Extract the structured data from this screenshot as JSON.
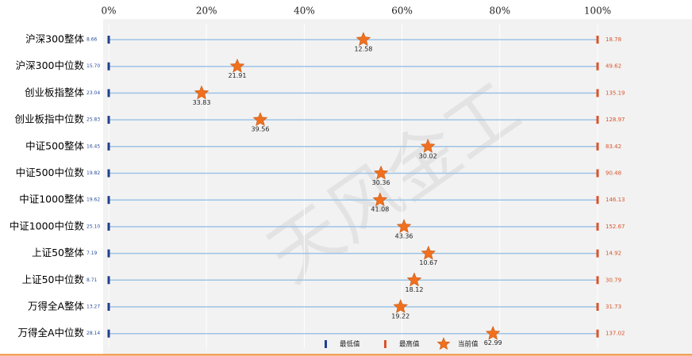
{
  "chart_data": {
    "type": "range",
    "categories": [
      "沪深300整体",
      "沪深300中位数",
      "创业板指整体",
      "创业板指中位数",
      "中证500整体",
      "中证500中位数",
      "中证1000整体",
      "中证1000中位数",
      "上证50整体",
      "上证50中位数",
      "万得全A整体",
      "万得全A中位数"
    ],
    "xlim": [
      0,
      100
    ],
    "xticks": [
      {
        "value": 0,
        "label": "0%"
      },
      {
        "value": 20,
        "label": "20%"
      },
      {
        "value": 40,
        "label": "40%"
      },
      {
        "value": 60,
        "label": "60%"
      },
      {
        "value": 80,
        "label": "80%"
      },
      {
        "value": 100,
        "label": "100%"
      }
    ],
    "series": [
      {
        "name": "最低值",
        "color": "#1f3f8f",
        "values": [
          8.66,
          15.7,
          23.04,
          25.83,
          16.45,
          19.82,
          19.62,
          25.1,
          7.19,
          8.71,
          13.27,
          28.14
        ],
        "value_labels": [
          "8.66",
          "15.70",
          "23.04",
          "25.83",
          "16.45",
          "19.82",
          "19.62",
          "25.10",
          "7.19",
          "8.71",
          "13.27",
          "28.14"
        ]
      },
      {
        "name": "最高值",
        "color": "#d9542b",
        "values": [
          18.78,
          49.62,
          135.19,
          128.97,
          83.42,
          90.48,
          146.13,
          152.67,
          14.92,
          30.79,
          31.73,
          137.02
        ]
      },
      {
        "name": "当前值",
        "color": "#f07020",
        "values": [
          12.58,
          21.91,
          33.83,
          39.56,
          30.02,
          30.36,
          41.08,
          43.36,
          10.67,
          18.12,
          19.22,
          62.99
        ],
        "positions": [
          52.1,
          26.3,
          19.0,
          31.0,
          65.3,
          55.7,
          55.5,
          60.4,
          65.4,
          62.5,
          59.7,
          78.6
        ]
      }
    ],
    "watermark": "天风金工"
  }
}
